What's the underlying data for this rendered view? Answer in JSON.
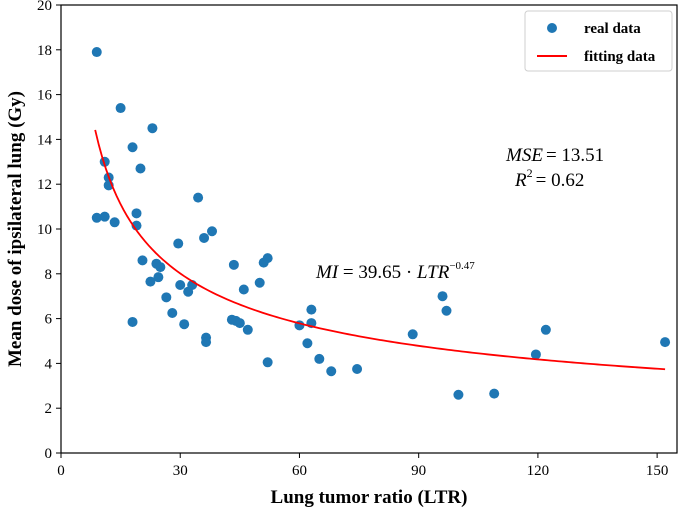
{
  "chart_data": {
    "type": "scatter",
    "title": "",
    "xlabel": "Lung tumor ratio (LTR)",
    "ylabel": "Mean dose of ipsilateral lung (Gy)",
    "xlim": [
      0,
      155
    ],
    "ylim": [
      0,
      20
    ],
    "xticks": [
      0,
      30,
      60,
      90,
      120,
      150
    ],
    "yticks": [
      0,
      2,
      4,
      6,
      8,
      10,
      12,
      14,
      16,
      18,
      20
    ],
    "xtick_labels": [
      "0",
      "30",
      "60",
      "90",
      "120",
      "150"
    ],
    "ytick_labels": [
      "0",
      "2",
      "4",
      "6",
      "8",
      "10",
      "12",
      "14",
      "16",
      "18",
      "20"
    ],
    "series": [
      {
        "name": "real data",
        "kind": "scatter",
        "color": "#1f77b4",
        "points": [
          [
            9,
            17.9
          ],
          [
            9,
            10.5
          ],
          [
            11,
            10.55
          ],
          [
            11,
            13.0
          ],
          [
            12,
            12.3
          ],
          [
            12,
            11.95
          ],
          [
            13.5,
            10.3
          ],
          [
            15,
            15.4
          ],
          [
            18,
            13.65
          ],
          [
            18,
            5.85
          ],
          [
            19,
            10.7
          ],
          [
            19,
            10.15
          ],
          [
            20,
            12.7
          ],
          [
            20.5,
            8.6
          ],
          [
            22.5,
            7.65
          ],
          [
            23,
            14.5
          ],
          [
            24,
            8.45
          ],
          [
            24.5,
            7.85
          ],
          [
            25,
            8.3
          ],
          [
            26.5,
            6.95
          ],
          [
            28,
            6.25
          ],
          [
            29.5,
            9.35
          ],
          [
            30,
            7.5
          ],
          [
            31,
            5.75
          ],
          [
            32,
            7.2
          ],
          [
            33,
            7.5
          ],
          [
            34.5,
            11.4
          ],
          [
            36,
            9.6
          ],
          [
            36.5,
            5.15
          ],
          [
            36.5,
            4.95
          ],
          [
            38,
            9.9
          ],
          [
            43,
            5.95
          ],
          [
            43.5,
            8.4
          ],
          [
            44,
            5.9
          ],
          [
            45,
            5.8
          ],
          [
            46,
            7.3
          ],
          [
            47,
            5.5
          ],
          [
            50,
            7.6
          ],
          [
            51,
            8.5
          ],
          [
            52,
            8.7
          ],
          [
            52,
            4.05
          ],
          [
            60,
            5.7
          ],
          [
            62,
            4.9
          ],
          [
            63,
            6.4
          ],
          [
            63,
            5.8
          ],
          [
            65,
            4.2
          ],
          [
            68,
            3.65
          ],
          [
            74.5,
            3.75
          ],
          [
            88.5,
            5.3
          ],
          [
            96,
            7.0
          ],
          [
            97,
            6.35
          ],
          [
            100,
            2.6
          ],
          [
            109,
            2.65
          ],
          [
            119.5,
            4.4
          ],
          [
            122,
            5.5
          ],
          [
            152,
            4.95
          ]
        ]
      },
      {
        "name": "fitting data",
        "kind": "line",
        "color": "#ff0000",
        "model": "y = 39.65 * x^-0.47",
        "x_range": [
          8.6,
          152
        ],
        "coefficient": 39.65,
        "exponent": -0.47
      }
    ],
    "legend": {
      "position": "top-right",
      "entries": [
        "real data",
        "fitting data"
      ]
    },
    "annotations": {
      "mse": {
        "label": "MSE",
        "value": "= 13.51"
      },
      "r2": {
        "label": "R",
        "sup": "2",
        "value": "= 0.62"
      },
      "equation": {
        "lhs": "MI",
        "eq": " = 39.65 · ",
        "var": "LTR",
        "exp": "−0.47"
      }
    },
    "grid": false
  }
}
